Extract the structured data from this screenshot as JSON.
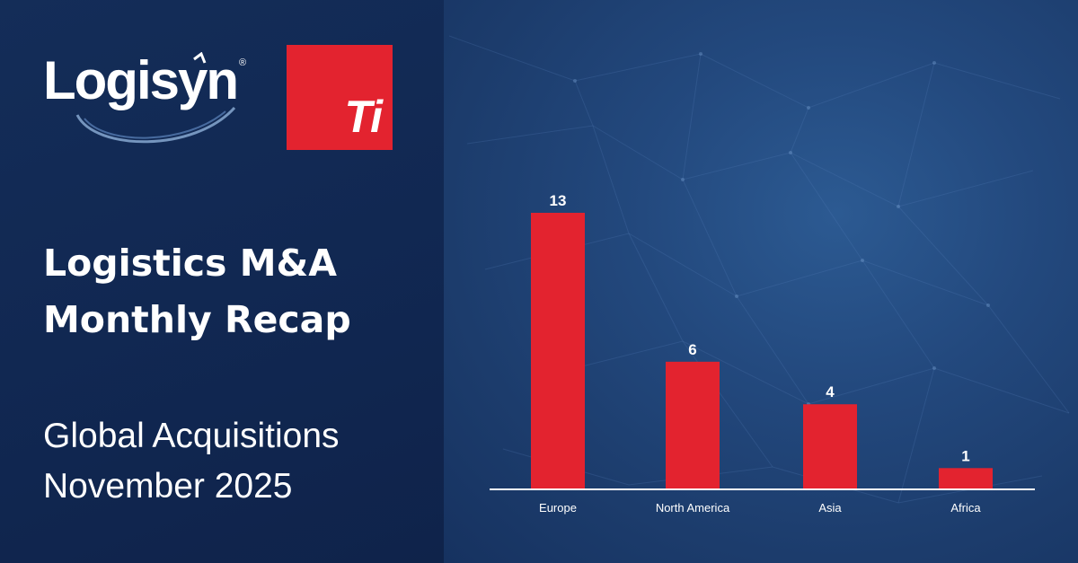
{
  "brand": {
    "logisyn": "Logisyn",
    "registered": "®",
    "ti": "Ti"
  },
  "headline": {
    "line1": "Logistics M&A",
    "line2": "Monthly Recap"
  },
  "subtitle": {
    "line1": "Global Acquisitions",
    "line2": "November 2025"
  },
  "colors": {
    "bar": "#e3232f",
    "axis": "#ffffff",
    "text": "#ffffff"
  },
  "chart_data": {
    "type": "bar",
    "title": "",
    "xlabel": "",
    "ylabel": "",
    "categories": [
      "Europe",
      "North America",
      "Asia",
      "Africa"
    ],
    "values": [
      13,
      6,
      4,
      1
    ],
    "ylim": [
      0,
      13
    ],
    "grid": false,
    "data_labels": true
  }
}
